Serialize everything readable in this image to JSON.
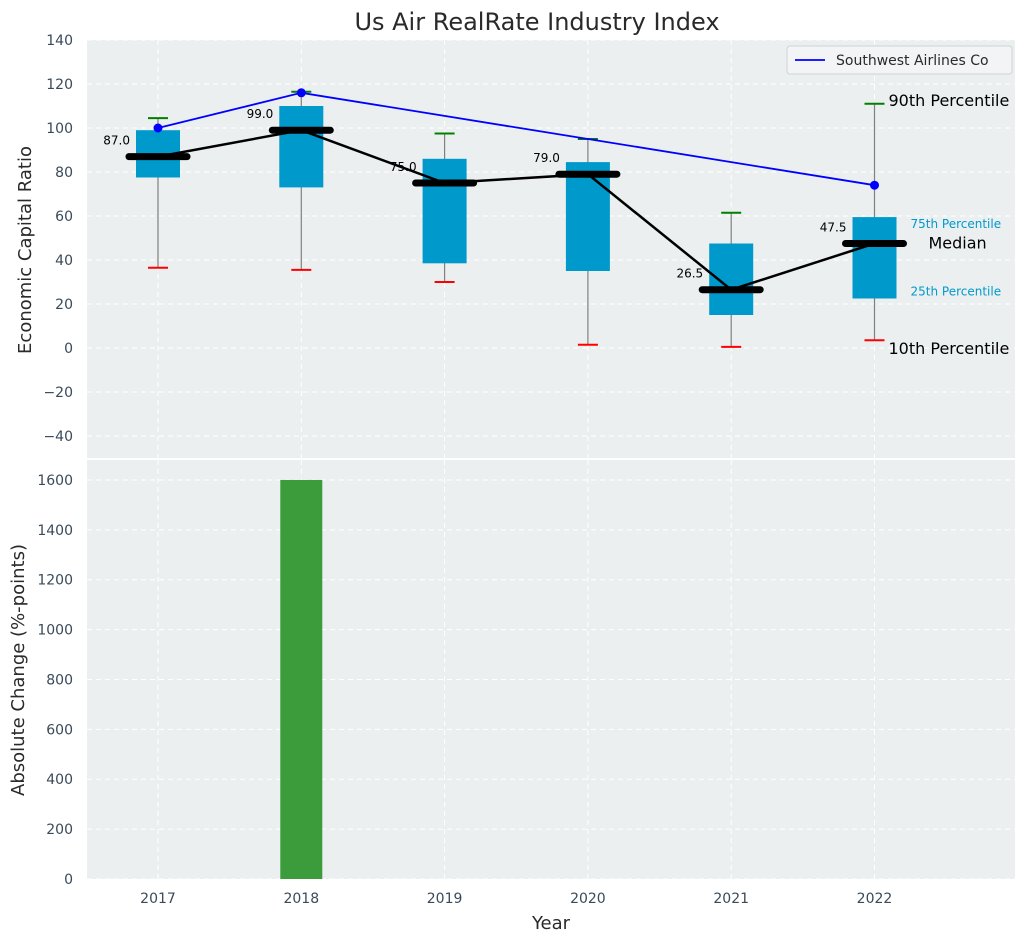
{
  "chart_data": [
    {
      "type": "box",
      "title": "Us Air RealRate Industry Index",
      "ylabel": "Economic Capital Ratio",
      "ylim": [
        -50,
        140
      ],
      "yticks": [
        -40,
        -20,
        0,
        20,
        40,
        60,
        80,
        100,
        120,
        140
      ],
      "grid": true,
      "legend": {
        "position": "top-right",
        "entries": [
          "Southwest Airlines Co"
        ]
      },
      "categories": [
        "2017",
        "2018",
        "2019",
        "2020",
        "2021",
        "2022"
      ],
      "boxes": [
        {
          "year": "2017",
          "p10": 36.5,
          "p25": 77.5,
          "median": 87.0,
          "p75": 99.0,
          "p90": 104.5
        },
        {
          "year": "2018",
          "p10": 35.5,
          "p25": 73.0,
          "median": 99.0,
          "p75": 110.0,
          "p90": 116.5
        },
        {
          "year": "2019",
          "p10": 30.0,
          "p25": 38.5,
          "median": 75.0,
          "p75": 86.0,
          "p90": 97.5
        },
        {
          "year": "2020",
          "p10": 1.5,
          "p25": 35.0,
          "median": 79.0,
          "p75": 84.5,
          "p90": 95.0
        },
        {
          "year": "2021",
          "p10": 0.5,
          "p25": 15.0,
          "median": 26.5,
          "p75": 47.5,
          "p90": 61.5
        },
        {
          "year": "2022",
          "p10": 3.5,
          "p25": 22.5,
          "median": 47.5,
          "p75": 59.5,
          "p90": 111.0
        }
      ],
      "median_labels": [
        "87.0",
        "99.0",
        "75.0",
        "79.0",
        "26.5",
        "47.5"
      ],
      "series": [
        {
          "name": "Southwest Airlines Co",
          "color": "#0000ff",
          "points": [
            {
              "x": "2017",
              "y": 100.0
            },
            {
              "x": "2018",
              "y": 116.0
            },
            {
              "x": "2022",
              "y": 74.0
            }
          ]
        }
      ],
      "annotations": {
        "p90": "90th Percentile",
        "p75": "75th Percentile",
        "median": "Median",
        "p25": "25th Percentile",
        "p10": "10th Percentile"
      },
      "colors": {
        "box": "#0099cc",
        "median": "#000000",
        "p90_cap": "#008000",
        "p10_cap": "#ff0000",
        "whisker": "#808080",
        "background": "#ebeff0"
      }
    },
    {
      "type": "bar",
      "xlabel": "Year",
      "ylabel": "Absolute Change (%-points)",
      "ylim": [
        0,
        1680
      ],
      "yticks": [
        0,
        200,
        400,
        600,
        800,
        1000,
        1200,
        1400,
        1600
      ],
      "grid": true,
      "categories": [
        "2017",
        "2018",
        "2019",
        "2020",
        "2021",
        "2022"
      ],
      "values": [
        0,
        1600,
        0,
        0,
        0,
        0
      ],
      "colors": {
        "bar": "#3c9c3c"
      }
    }
  ]
}
